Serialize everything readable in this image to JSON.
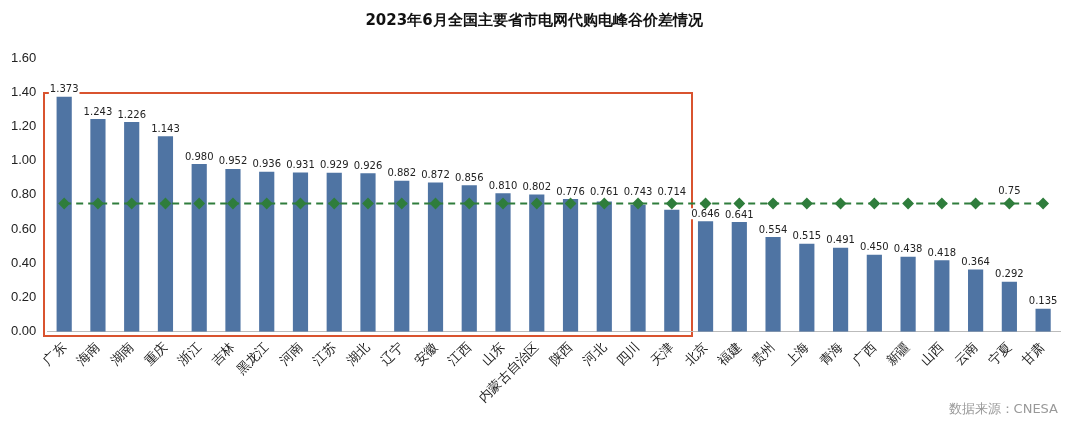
{
  "chart_data": {
    "type": "bar",
    "title": "2023年6月全国主要省市电网代购电峰谷价差情况",
    "categories": [
      "广东",
      "海南",
      "湖南",
      "重庆",
      "浙江",
      "吉林",
      "黑龙江",
      "河南",
      "江苏",
      "湖北",
      "辽宁",
      "安徽",
      "江西",
      "山东",
      "内蒙古自治区",
      "陕西",
      "河北",
      "四川",
      "天津",
      "北京",
      "福建",
      "贵州",
      "上海",
      "青海",
      "广西",
      "新疆",
      "山西",
      "云南",
      "宁夏",
      "甘肃"
    ],
    "series": [
      {
        "color": "#4f74a3",
        "values": [
          1.373,
          1.243,
          1.226,
          1.143,
          0.98,
          0.952,
          0.936,
          0.931,
          0.929,
          0.926,
          0.882,
          0.872,
          0.856,
          0.81,
          0.802,
          0.776,
          0.761,
          0.743,
          0.714,
          0.646,
          0.641,
          0.554,
          0.515,
          0.491,
          0.45,
          0.438,
          0.418,
          0.364,
          0.292,
          0.135
        ],
        "value_labels": [
          "1.373",
          "1.243",
          "1.226",
          "1.143",
          "0.980",
          "0.952",
          "0.936",
          "0.931",
          "0.929",
          "0.926",
          "0.882",
          "0.872",
          "0.856",
          "0.810",
          "0.802",
          "0.776",
          "0.761",
          "0.743",
          "0.714",
          "0.646",
          "0.641",
          "0.554",
          "0.515",
          "0.491",
          "0.450",
          "0.438",
          "0.418",
          "0.364",
          "0.292",
          "0.135"
        ]
      },
      {
        "type": "line",
        "color": "#2f7d3c",
        "marker": "diamond",
        "line_style": "dashed",
        "values": [
          0.75,
          0.75,
          0.75,
          0.75,
          0.75,
          0.75,
          0.75,
          0.75,
          0.75,
          0.75,
          0.75,
          0.75,
          0.75,
          0.75,
          0.75,
          0.75,
          0.75,
          0.75,
          0.75,
          0.75,
          0.75,
          0.75,
          0.75,
          0.75,
          0.75,
          0.75,
          0.75,
          0.75,
          0.75,
          0.75
        ],
        "value_labels": [
          null,
          null,
          null,
          null,
          null,
          null,
          null,
          null,
          null,
          null,
          null,
          null,
          null,
          null,
          null,
          null,
          null,
          null,
          null,
          null,
          null,
          null,
          null,
          null,
          null,
          null,
          null,
          null,
          "0.75",
          null
        ]
      }
    ],
    "ylim": [
      0,
      1.6
    ],
    "yticks": [
      {
        "value": 0,
        "label": "0.00"
      },
      {
        "value": 0.2,
        "label": "0.20"
      },
      {
        "value": 0.4,
        "label": "0.40"
      },
      {
        "value": 0.6,
        "label": "0.60"
      },
      {
        "value": 0.8,
        "label": "0.80"
      },
      {
        "value": 1.0,
        "label": "1.00"
      },
      {
        "value": 1.2,
        "label": "1.20"
      },
      {
        "value": 1.4,
        "label": "1.40"
      },
      {
        "value": 1.6,
        "label": "1.60"
      }
    ],
    "grid": false,
    "legend": false,
    "annotations": [
      "数据来源：CNESA"
    ]
  }
}
